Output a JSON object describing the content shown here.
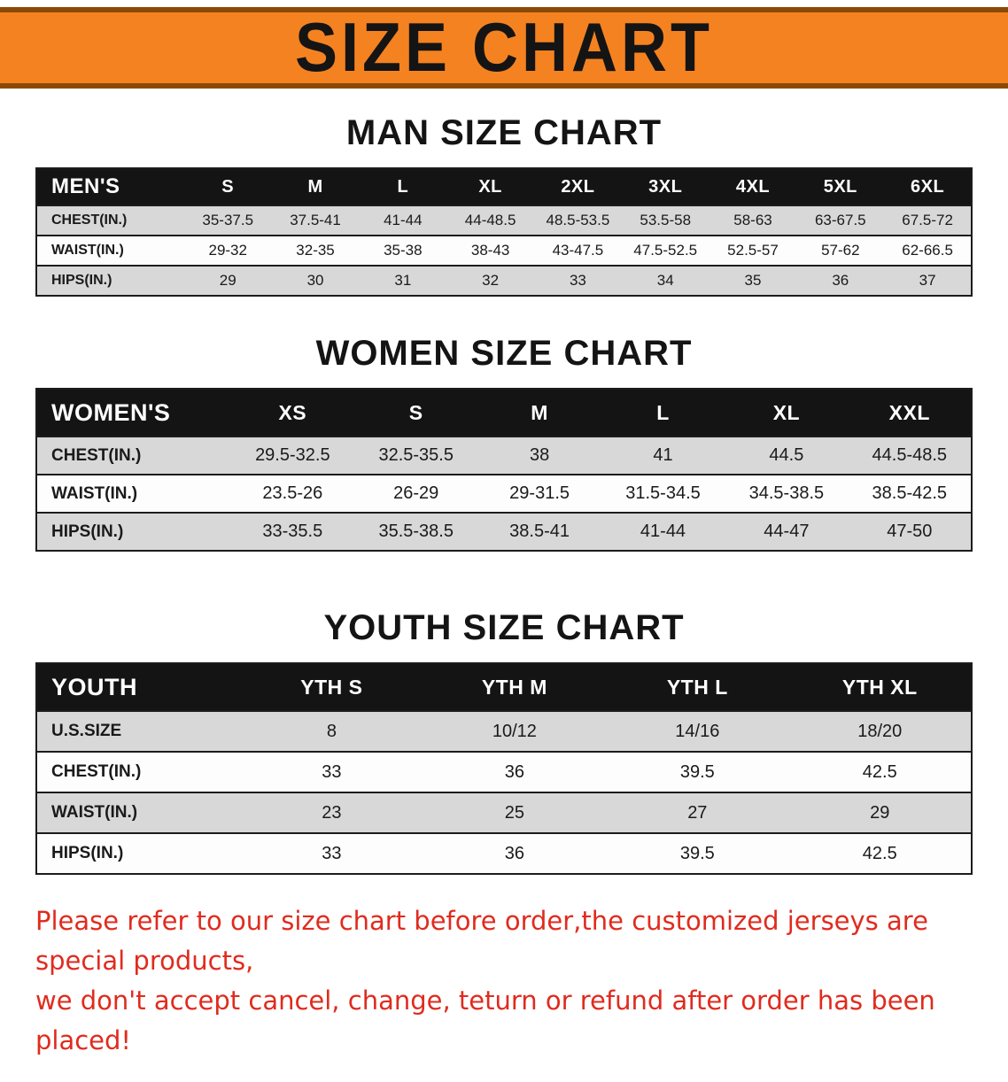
{
  "banner": {
    "title": "SIZE CHART"
  },
  "sections": {
    "men": {
      "title": "MAN SIZE CHART",
      "table": {
        "header": [
          "MEN'S",
          "S",
          "M",
          "L",
          "XL",
          "2XL",
          "3XL",
          "4XL",
          "5XL",
          "6XL"
        ],
        "rows": [
          [
            "CHEST(IN.)",
            "35-37.5",
            "37.5-41",
            "41-44",
            "44-48.5",
            "48.5-53.5",
            "53.5-58",
            "58-63",
            "63-67.5",
            "67.5-72"
          ],
          [
            "WAIST(IN.)",
            "29-32",
            "32-35",
            "35-38",
            "38-43",
            "43-47.5",
            "47.5-52.5",
            "52.5-57",
            "57-62",
            "62-66.5"
          ],
          [
            "HIPS(IN.)",
            "29",
            "30",
            "31",
            "32",
            "33",
            "34",
            "35",
            "36",
            "37"
          ]
        ]
      }
    },
    "women": {
      "title": "WOMEN SIZE CHART",
      "table": {
        "header": [
          "WOMEN'S",
          "XS",
          "S",
          "M",
          "L",
          "XL",
          "XXL"
        ],
        "rows": [
          [
            "CHEST(IN.)",
            "29.5-32.5",
            "32.5-35.5",
            "38",
            "41",
            "44.5",
            "44.5-48.5"
          ],
          [
            "WAIST(IN.)",
            "23.5-26",
            "26-29",
            "29-31.5",
            "31.5-34.5",
            "34.5-38.5",
            "38.5-42.5"
          ],
          [
            "HIPS(IN.)",
            "33-35.5",
            "35.5-38.5",
            "38.5-41",
            "41-44",
            "44-47",
            "47-50"
          ]
        ]
      }
    },
    "youth": {
      "title": "YOUTH SIZE CHART",
      "table": {
        "header": [
          "YOUTH",
          "YTH S",
          "YTH M",
          "YTH L",
          "YTH XL"
        ],
        "rows": [
          [
            "U.S.SIZE",
            "8",
            "10/12",
            "14/16",
            "18/20"
          ],
          [
            "CHEST(IN.)",
            "33",
            "36",
            "39.5",
            "42.5"
          ],
          [
            "WAIST(IN.)",
            "23",
            "25",
            "27",
            "29"
          ],
          [
            "HIPS(IN.)",
            "33",
            "36",
            "39.5",
            "42.5"
          ]
        ]
      }
    }
  },
  "notice": {
    "line1": "Please refer to our size chart before order,the customized jerseys are special products,",
    "line2": "we don't accept cancel, change, teturn or refund after order has been placed!"
  },
  "colors": {
    "banner_bg": "#f58220",
    "banner_edge": "#8a4a07",
    "header_bg": "#141414",
    "stripe_gray": "#d8d8d8",
    "notice_red": "#e02b1e"
  }
}
